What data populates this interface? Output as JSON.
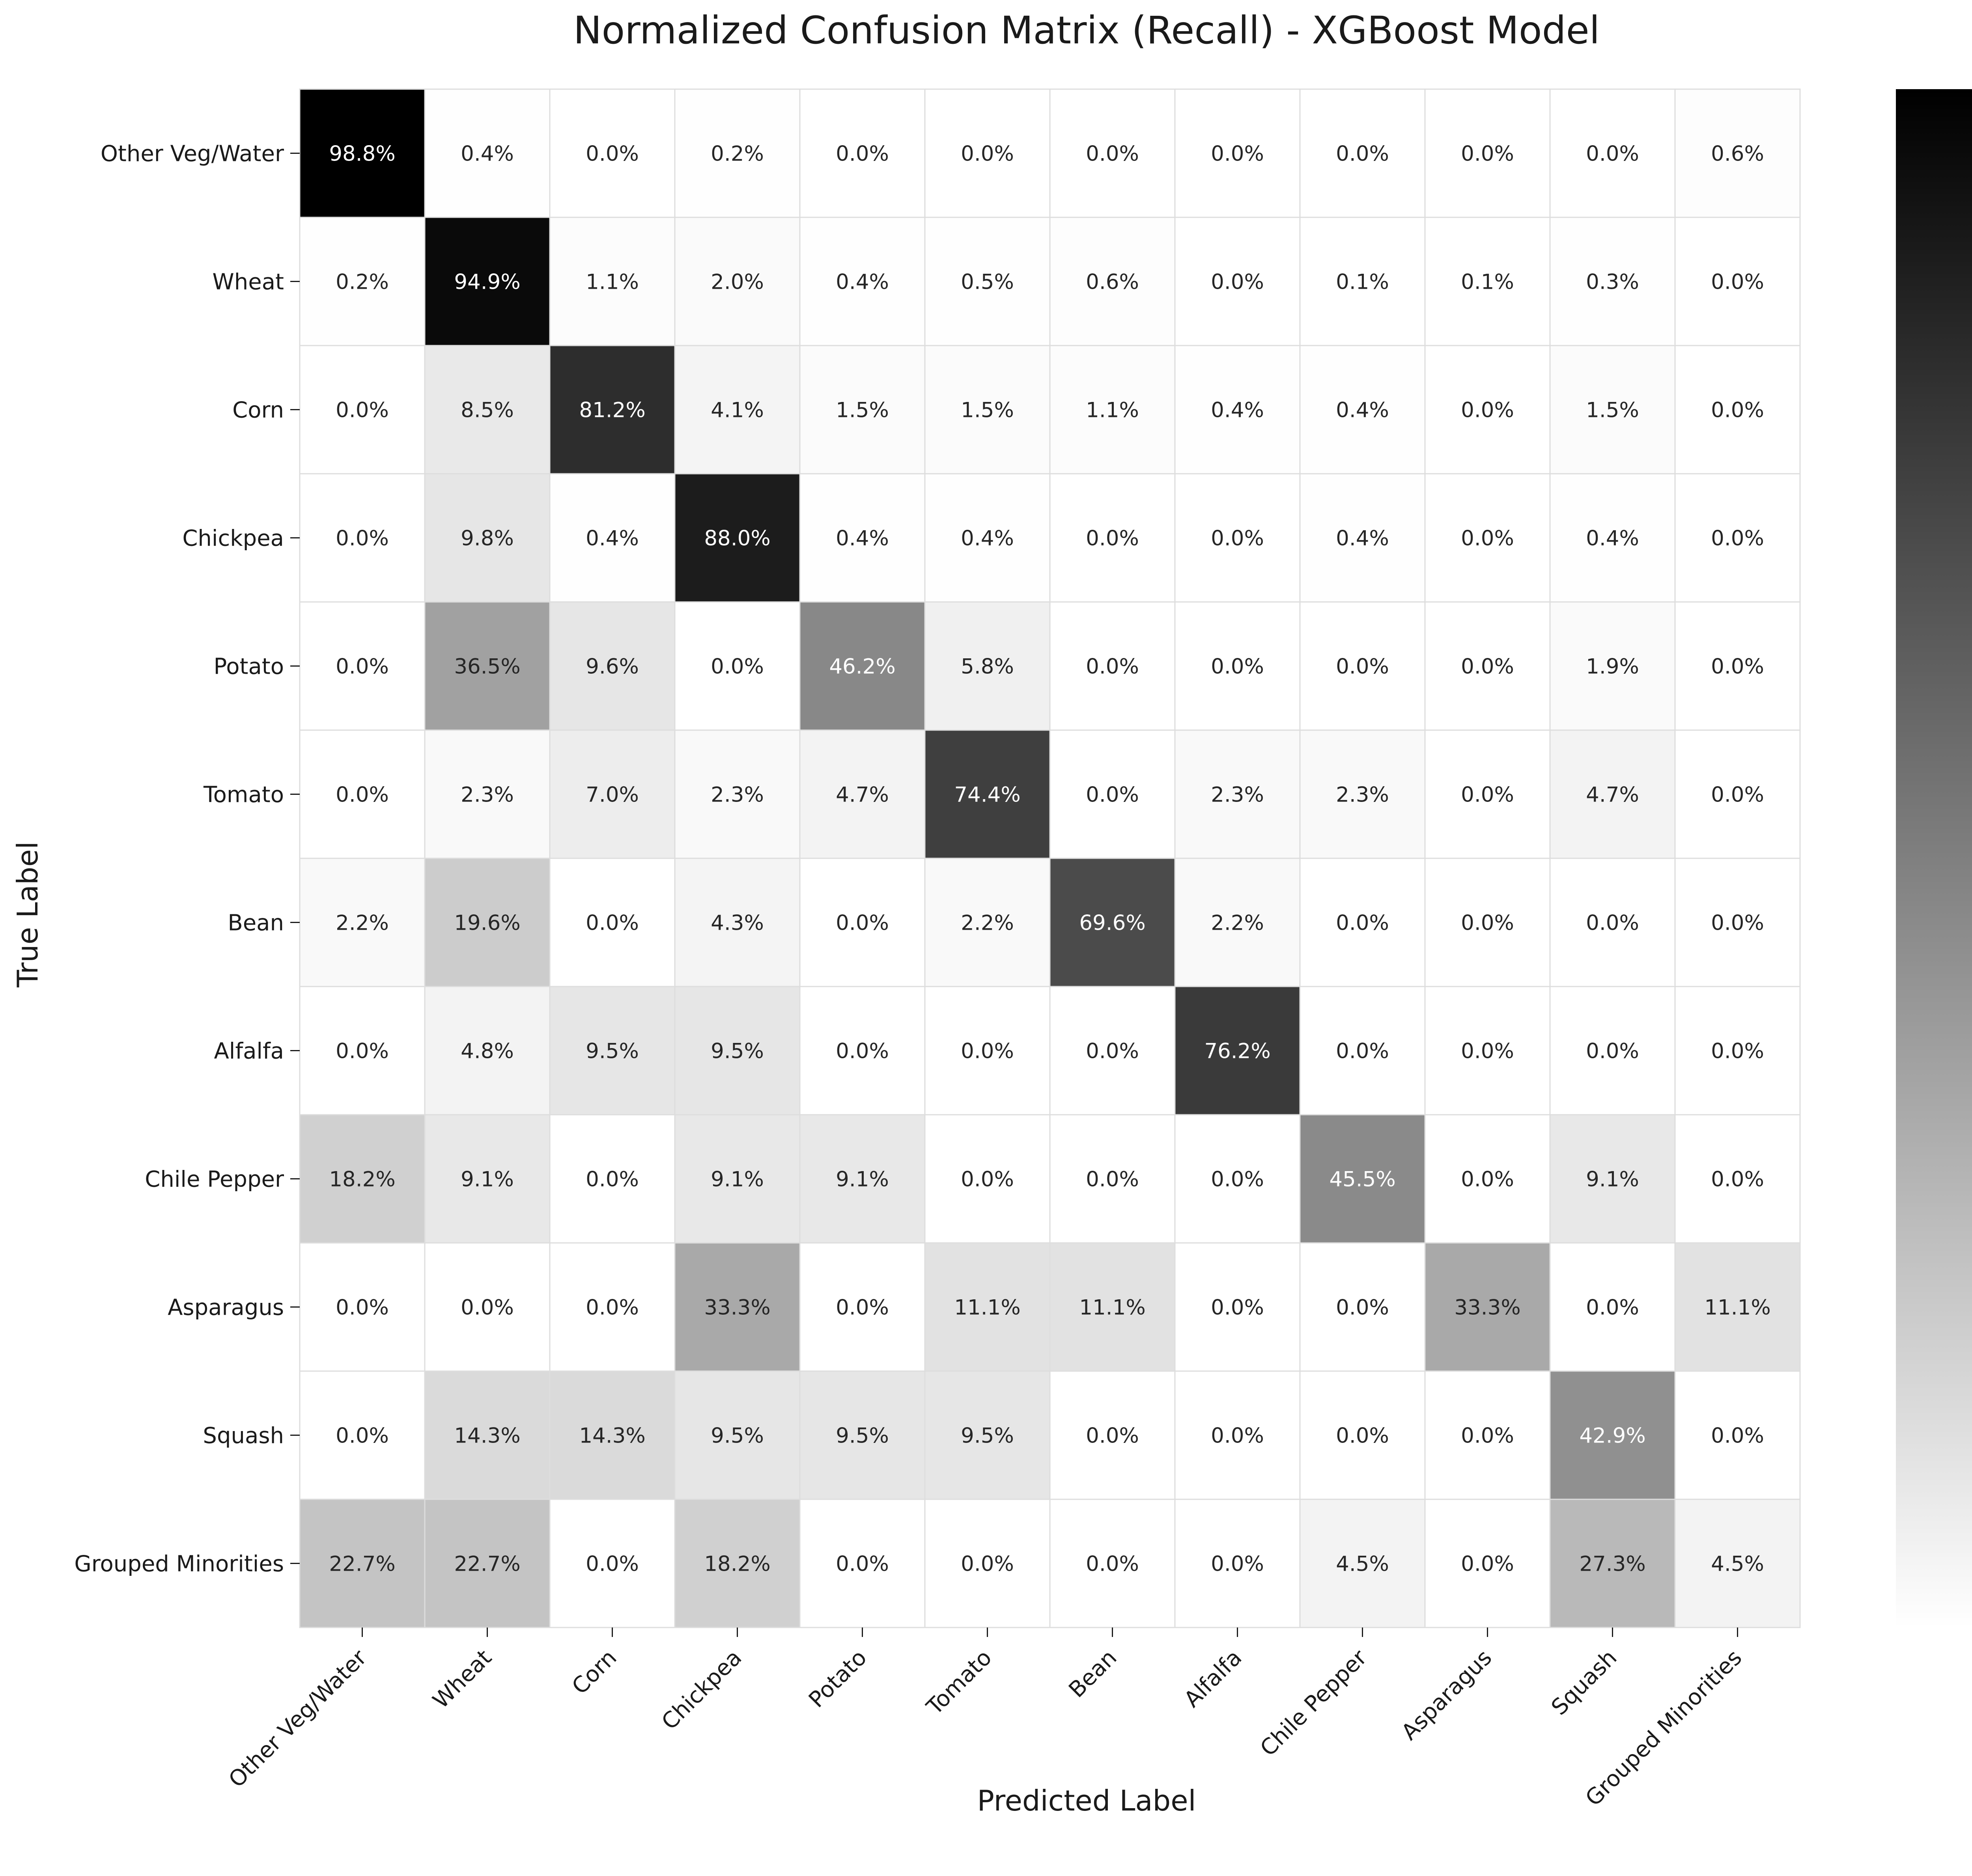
{
  "chart_data": {
    "type": "heatmap",
    "title": "Normalized Confusion Matrix (Recall) - XGBoost Model",
    "xlabel": "Predicted Label",
    "ylabel": "True Label",
    "row_labels": [
      "Other Veg/Water",
      "Wheat",
      "Corn",
      "Chickpea",
      "Potato",
      "Tomato",
      "Bean",
      "Alfalfa",
      "Chile Pepper",
      "Asparagus",
      "Squash",
      "Grouped Minorities"
    ],
    "col_labels": [
      "Other Veg/Water",
      "Wheat",
      "Corn",
      "Chickpea",
      "Potato",
      "Tomato",
      "Bean",
      "Alfalfa",
      "Chile Pepper",
      "Asparagus",
      "Squash",
      "Grouped Minorities"
    ],
    "values": [
      [
        0.988,
        0.004,
        0.0,
        0.002,
        0.0,
        0.0,
        0.0,
        0.0,
        0.0,
        0.0,
        0.0,
        0.006
      ],
      [
        0.002,
        0.949,
        0.011,
        0.02,
        0.004,
        0.005,
        0.006,
        0.0,
        0.001,
        0.001,
        0.003,
        0.0
      ],
      [
        0.0,
        0.085,
        0.812,
        0.041,
        0.015,
        0.015,
        0.011,
        0.004,
        0.004,
        0.0,
        0.015,
        0.0
      ],
      [
        0.0,
        0.098,
        0.004,
        0.88,
        0.004,
        0.004,
        0.0,
        0.0,
        0.004,
        0.0,
        0.004,
        0.0
      ],
      [
        0.0,
        0.365,
        0.096,
        0.0,
        0.462,
        0.058,
        0.0,
        0.0,
        0.0,
        0.0,
        0.019,
        0.0
      ],
      [
        0.0,
        0.023,
        0.07,
        0.023,
        0.047,
        0.744,
        0.0,
        0.023,
        0.023,
        0.0,
        0.047,
        0.0
      ],
      [
        0.022,
        0.196,
        0.0,
        0.043,
        0.0,
        0.022,
        0.696,
        0.022,
        0.0,
        0.0,
        0.0,
        0.0
      ],
      [
        0.0,
        0.048,
        0.095,
        0.095,
        0.0,
        0.0,
        0.0,
        0.762,
        0.0,
        0.0,
        0.0,
        0.0
      ],
      [
        0.182,
        0.091,
        0.0,
        0.091,
        0.091,
        0.0,
        0.0,
        0.0,
        0.455,
        0.0,
        0.091,
        0.0
      ],
      [
        0.0,
        0.0,
        0.0,
        0.333,
        0.0,
        0.111,
        0.111,
        0.0,
        0.0,
        0.333,
        0.0,
        0.111
      ],
      [
        0.0,
        0.143,
        0.143,
        0.095,
        0.095,
        0.095,
        0.0,
        0.0,
        0.0,
        0.0,
        0.429,
        0.0
      ],
      [
        0.227,
        0.227,
        0.0,
        0.182,
        0.0,
        0.0,
        0.0,
        0.0,
        0.045,
        0.0,
        0.273,
        0.045
      ]
    ],
    "value_format": "percent_1dp",
    "colormap": "Greys",
    "vmin": 0.0,
    "vmax": 0.988,
    "colorbar_ticks": [
      "0.0",
      "0.2",
      "0.4",
      "0.6",
      "0.8"
    ],
    "colorbar_tick_values": [
      0.0,
      0.2,
      0.4,
      0.6,
      0.8
    ],
    "text_color_dark": "#262626",
    "text_color_light": "#ffffff",
    "grid_color": "#dddddd"
  }
}
